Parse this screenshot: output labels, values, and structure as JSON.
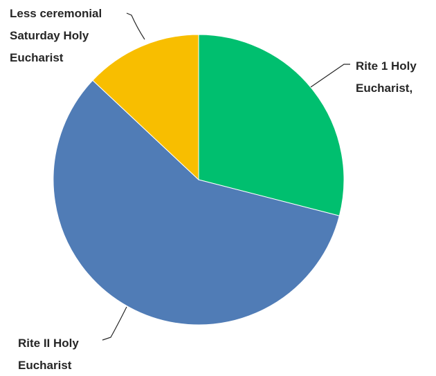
{
  "chart_data": {
    "type": "pie",
    "title": "",
    "slices": [
      {
        "label_lines": [
          "Rite 1 Holy",
          "Eucharist,"
        ],
        "value": 29,
        "color": "#00bf6f"
      },
      {
        "label_lines": [
          "Rite II Holy",
          "Eucharist"
        ],
        "value": 58,
        "color": "#507cb6"
      },
      {
        "label_lines": [
          "Less ceremonial",
          "Saturday Holy",
          "Eucharist"
        ],
        "value": 13,
        "color": "#f8be00"
      }
    ],
    "start_angle_deg": 0,
    "direction": "clockwise"
  }
}
